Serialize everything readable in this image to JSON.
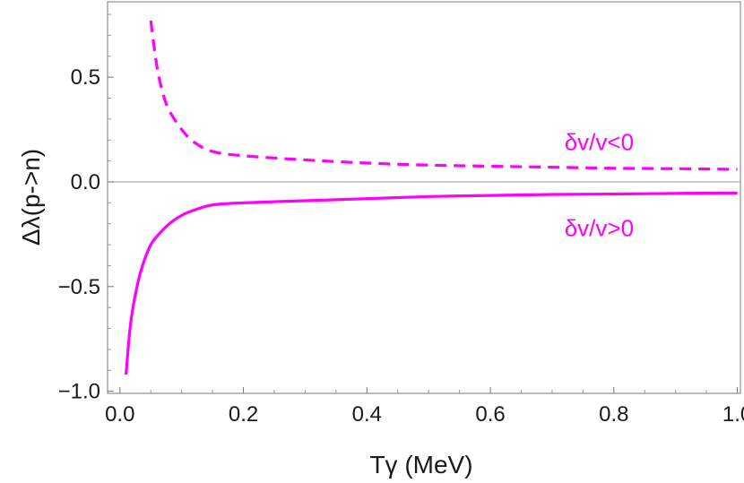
{
  "chart_data": {
    "type": "line",
    "title": "",
    "xlabel": "Tγ   (MeV)",
    "ylabel": "Δλ(p->n)",
    "xlim": [
      -0.02,
      1.005
    ],
    "ylim": [
      -1.01,
      0.86
    ],
    "x_ticks": [
      0.0,
      0.2,
      0.4,
      0.6,
      0.8,
      1.0
    ],
    "x_tick_labels": [
      "0.0",
      "0.2",
      "0.4",
      "0.6",
      "0.8",
      "1.0"
    ],
    "y_ticks": [
      -1.0,
      -0.5,
      0.0,
      0.5
    ],
    "y_tick_labels": [
      "−1.0",
      "−0.5",
      "0.0",
      "0.5"
    ],
    "reference_line_y": 0.0,
    "grid": false,
    "series": [
      {
        "name": "δv/v<0",
        "style": "dashed",
        "color": "#ff00ff",
        "x": [
          0.05,
          0.06,
          0.07,
          0.08,
          0.1,
          0.12,
          0.15,
          0.2,
          0.3,
          0.4,
          0.5,
          0.6,
          0.7,
          0.8,
          0.9,
          1.0
        ],
        "y": [
          0.77,
          0.55,
          0.42,
          0.34,
          0.25,
          0.19,
          0.145,
          0.125,
          0.105,
          0.09,
          0.08,
          0.075,
          0.07,
          0.065,
          0.063,
          0.06
        ]
      },
      {
        "name": "δv/v>0",
        "style": "solid",
        "color": "#ff00ff",
        "x": [
          0.01,
          0.015,
          0.02,
          0.03,
          0.04,
          0.05,
          0.06,
          0.08,
          0.1,
          0.12,
          0.15,
          0.2,
          0.3,
          0.4,
          0.5,
          0.6,
          0.7,
          0.8,
          0.9,
          1.0
        ],
        "y": [
          -0.92,
          -0.74,
          -0.62,
          -0.47,
          -0.37,
          -0.3,
          -0.26,
          -0.2,
          -0.16,
          -0.135,
          -0.11,
          -0.1,
          -0.09,
          -0.08,
          -0.07,
          -0.065,
          -0.06,
          -0.058,
          -0.055,
          -0.053
        ]
      }
    ],
    "annotations": [
      {
        "text": "δv/v<0",
        "x": 0.72,
        "y": 0.19
      },
      {
        "text": "δv/v>0",
        "x": 0.72,
        "y": -0.22
      }
    ]
  }
}
